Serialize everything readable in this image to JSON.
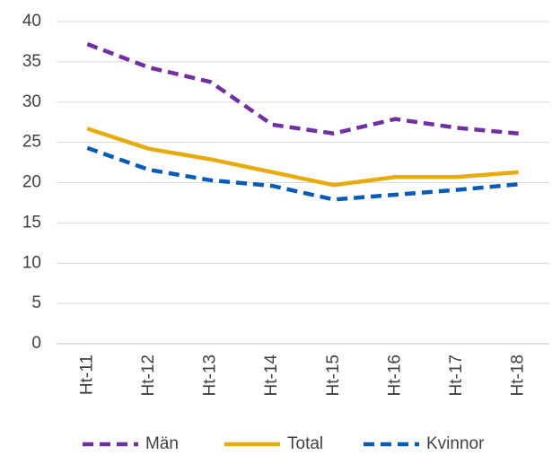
{
  "chart_data": {
    "type": "line",
    "categories": [
      "Ht-11",
      "Ht-12",
      "Ht-13",
      "Ht-14",
      "Ht-15",
      "Ht-16",
      "Ht-17",
      "Ht-18"
    ],
    "series": [
      {
        "name": "Män",
        "color": "#7030a0",
        "dashed": true,
        "values": [
          37.2,
          34.3,
          32.5,
          27.2,
          26.1,
          27.9,
          26.8,
          26.1
        ]
      },
      {
        "name": "Total",
        "color": "#e8ab0c",
        "dashed": false,
        "values": [
          26.7,
          24.2,
          22.9,
          21.3,
          19.7,
          20.7,
          20.7,
          21.3
        ]
      },
      {
        "name": "Kvinnor",
        "color": "#0a5bb5",
        "dashed": true,
        "values": [
          24.3,
          21.6,
          20.3,
          19.6,
          17.9,
          18.5,
          19.1,
          19.8
        ]
      }
    ],
    "ylim": [
      0,
      40
    ],
    "yticks": [
      0,
      5,
      10,
      15,
      20,
      25,
      30,
      35,
      40
    ],
    "grid": true,
    "legend": "bottom"
  }
}
